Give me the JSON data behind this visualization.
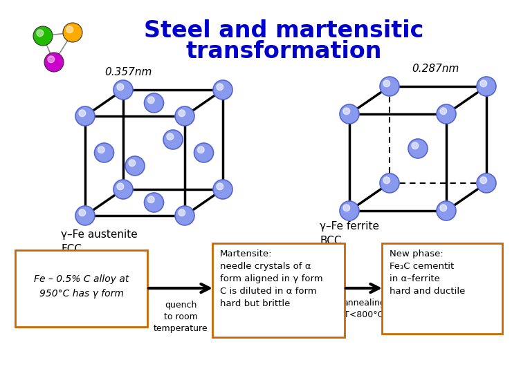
{
  "title_line1": "Steel and martensitic",
  "title_line2": "transformation",
  "title_color": "#0000CC",
  "title_fontsize": 24,
  "bg_color": "#FFFFFF",
  "atom_color": "#8899EE",
  "atom_edge_color": "#5566CC",
  "fcc_label_nm": "0.357nm",
  "bcc_label_nm": "0.287nm",
  "fcc_label": "γ–Fe austenite\nFCC",
  "bcc_label": "γ–Fe ferrite\nBCC",
  "box1_text": "Fe – 0.5% C alloy at\n950°C has γ form",
  "box2_text": "Martensite:\nneedle crystals of α\nform aligned in γ form\nC is diluted in α form\nhard but brittle",
  "arrow1_under": "quench\nto room\ntemperature",
  "box3_text": "annealing\nT<800°C",
  "box4_text": "New phase:\nFe₃C cementit\nin α–ferrite\nhard and ductile",
  "molecule_colors": [
    "#22BB00",
    "#FFAA00",
    "#CC00CC"
  ],
  "border_color": "#CC6600"
}
